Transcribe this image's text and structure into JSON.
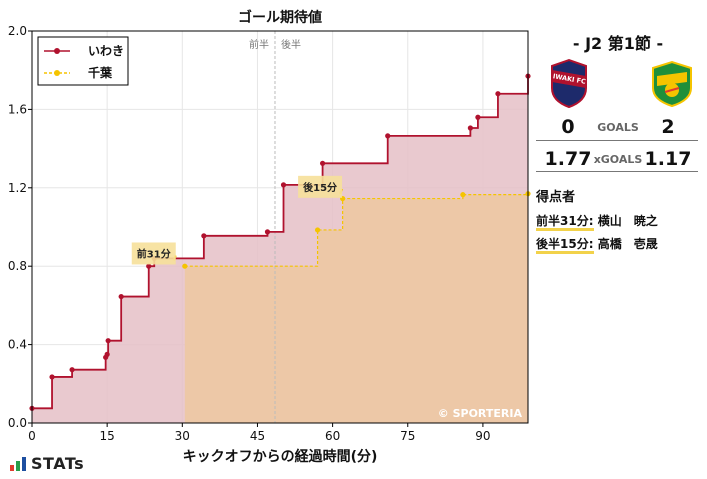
{
  "chart_data": {
    "type": "line",
    "title": "ゴール期待値",
    "xlabel": "キックオフからの経過時間(分)",
    "ylabel": "",
    "xlim": [
      0,
      99
    ],
    "ylim": [
      0,
      2.0
    ],
    "xticks": [
      0,
      15,
      30,
      45,
      60,
      75,
      90
    ],
    "yticks": [
      0.0,
      0.4,
      0.8,
      1.2,
      1.6,
      2.0
    ],
    "ytick_labels": [
      "0.0",
      "0.4",
      "0.8",
      "1.2",
      "1.6",
      "2.0"
    ],
    "step": true,
    "halftime": 48.5,
    "half_labels": [
      "前半",
      "後半"
    ],
    "legend_position": "top-left",
    "watermark": "© SPORTERIA",
    "series": [
      {
        "name": "いわき",
        "color": "#b0122e",
        "fill": "#e5bfc7",
        "line_style": "solid",
        "x": [
          0,
          4,
          8,
          14.7,
          15,
          15.2,
          17.8,
          23.3,
          24.4,
          34.3,
          47,
          50.2,
          58,
          71,
          87.5,
          89,
          93,
          99
        ],
        "y": [
          0.075,
          0.235,
          0.272,
          0.335,
          0.35,
          0.42,
          0.645,
          0.8,
          0.84,
          0.955,
          0.975,
          1.215,
          1.325,
          1.465,
          1.505,
          1.56,
          1.68,
          1.77
        ]
      },
      {
        "name": "千葉",
        "color": "#f5c400",
        "fill": "#edc8a0",
        "line_style": "dotted",
        "x": [
          30.5,
          57,
          62,
          86,
          99
        ],
        "y": [
          0.8,
          0.985,
          1.145,
          1.165,
          1.17
        ]
      }
    ],
    "annotations": [
      {
        "text": "前31分",
        "x": 24.3,
        "y": 0.87,
        "series": 1
      },
      {
        "text": "後15分",
        "x": 57.5,
        "y": 1.21,
        "series": 0
      }
    ]
  },
  "match": {
    "title": "- J2 第1節 -",
    "home_goals": "0",
    "away_goals": "2",
    "goals_label": "GOALS",
    "home_xg": "1.77",
    "away_xg": "1.17",
    "xg_label": "xGOALS",
    "home_badge_text": "IWAKI FC",
    "scorers_title": "得点者",
    "scorers": [
      {
        "time": "前半31分:",
        "name": "横山　暁之"
      },
      {
        "time": "後半15分:",
        "name": "高橋　壱晟"
      }
    ]
  },
  "brand": {
    "name": "STATs"
  }
}
